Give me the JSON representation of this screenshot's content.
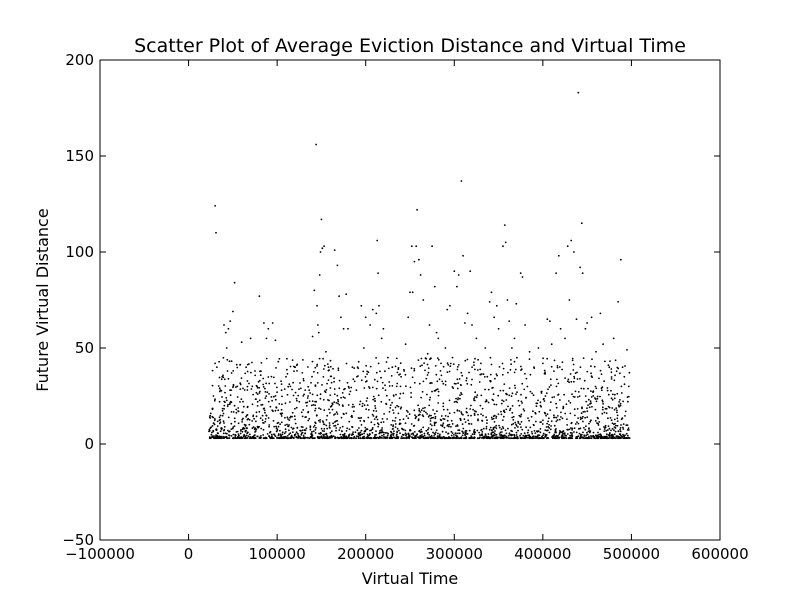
{
  "chart_data": {
    "type": "scatter",
    "title": "Scatter Plot of Average Eviction Distance and Virtual Time",
    "xlabel": "Virtual Time",
    "ylabel": "Future Virtual Distance",
    "xlim": [
      -100000,
      600000
    ],
    "ylim": [
      -50,
      200
    ],
    "x_ticks": [
      -100000,
      0,
      100000,
      200000,
      300000,
      400000,
      500000,
      600000
    ],
    "x_tick_labels": [
      "−100000",
      "0",
      "100000",
      "200000",
      "300000",
      "400000",
      "500000",
      "600000"
    ],
    "y_ticks": [
      -50,
      0,
      50,
      100,
      150,
      200
    ],
    "y_tick_labels": [
      "−50",
      "0",
      "50",
      "100",
      "150",
      "200"
    ],
    "grid": false,
    "legend": "none",
    "marker_color": "#000000",
    "series": [
      {
        "points": [
          [
            30000,
            124
          ],
          [
            31000,
            110
          ],
          [
            30000,
            42
          ],
          [
            32000,
            40
          ],
          [
            35000,
            22
          ],
          [
            28000,
            25
          ],
          [
            27000,
            18
          ],
          [
            40000,
            62
          ],
          [
            42000,
            58
          ],
          [
            45000,
            60
          ],
          [
            43000,
            50
          ],
          [
            47000,
            64
          ],
          [
            50000,
            69
          ],
          [
            52000,
            84
          ],
          [
            44000,
            38
          ],
          [
            55000,
            30
          ],
          [
            48000,
            28
          ],
          [
            38000,
            35
          ],
          [
            60000,
            53
          ],
          [
            65000,
            40
          ],
          [
            70000,
            55
          ],
          [
            72000,
            30
          ],
          [
            75000,
            38
          ],
          [
            78000,
            22
          ],
          [
            80000,
            77
          ],
          [
            85000,
            63
          ],
          [
            88000,
            55
          ],
          [
            90000,
            60
          ],
          [
            95000,
            63
          ],
          [
            98000,
            54
          ],
          [
            100000,
            27
          ],
          [
            105000,
            28
          ],
          [
            110000,
            35
          ],
          [
            115000,
            30
          ],
          [
            120000,
            40
          ],
          [
            125000,
            22
          ],
          [
            130000,
            33
          ],
          [
            135000,
            25
          ],
          [
            140000,
            56
          ],
          [
            142000,
            80
          ],
          [
            144000,
            156
          ],
          [
            145000,
            72
          ],
          [
            146000,
            62
          ],
          [
            147000,
            58
          ],
          [
            148000,
            88
          ],
          [
            149000,
            100
          ],
          [
            150000,
            117
          ],
          [
            151000,
            102
          ],
          [
            153000,
            103
          ],
          [
            155000,
            48
          ],
          [
            158000,
            40
          ],
          [
            165000,
            101
          ],
          [
            168000,
            93
          ],
          [
            170000,
            77
          ],
          [
            172000,
            66
          ],
          [
            175000,
            60
          ],
          [
            178000,
            78
          ],
          [
            180000,
            60
          ],
          [
            185000,
            40
          ],
          [
            190000,
            35
          ],
          [
            195000,
            72
          ],
          [
            198000,
            50
          ],
          [
            200000,
            66
          ],
          [
            205000,
            62
          ],
          [
            208000,
            70
          ],
          [
            212000,
            68
          ],
          [
            213000,
            106
          ],
          [
            214000,
            89
          ],
          [
            215000,
            72
          ],
          [
            218000,
            55
          ],
          [
            220000,
            60
          ],
          [
            225000,
            45
          ],
          [
            230000,
            40
          ],
          [
            235000,
            30
          ],
          [
            240000,
            35
          ],
          [
            245000,
            52
          ],
          [
            248000,
            66
          ],
          [
            250000,
            79
          ],
          [
            252000,
            103
          ],
          [
            253000,
            79
          ],
          [
            255000,
            95
          ],
          [
            257000,
            103
          ],
          [
            258000,
            122
          ],
          [
            260000,
            96
          ],
          [
            262000,
            88
          ],
          [
            265000,
            75
          ],
          [
            270000,
            47
          ],
          [
            272000,
            62
          ],
          [
            275000,
            103
          ],
          [
            278000,
            82
          ],
          [
            280000,
            58
          ],
          [
            282000,
            55
          ],
          [
            285000,
            42
          ],
          [
            290000,
            50
          ],
          [
            292000,
            70
          ],
          [
            295000,
            72
          ],
          [
            298000,
            45
          ],
          [
            300000,
            90
          ],
          [
            303000,
            82
          ],
          [
            305000,
            88
          ],
          [
            308000,
            137
          ],
          [
            310000,
            98
          ],
          [
            312000,
            63
          ],
          [
            315000,
            68
          ],
          [
            318000,
            90
          ],
          [
            320000,
            62
          ],
          [
            325000,
            55
          ],
          [
            330000,
            42
          ],
          [
            335000,
            50
          ],
          [
            340000,
            74
          ],
          [
            342000,
            79
          ],
          [
            345000,
            66
          ],
          [
            348000,
            72
          ],
          [
            350000,
            60
          ],
          [
            355000,
            103
          ],
          [
            357000,
            114
          ],
          [
            358000,
            105
          ],
          [
            360000,
            75
          ],
          [
            362000,
            64
          ],
          [
            365000,
            50
          ],
          [
            368000,
            55
          ],
          [
            370000,
            73
          ],
          [
            375000,
            89
          ],
          [
            377000,
            87
          ],
          [
            380000,
            62
          ],
          [
            385000,
            48
          ],
          [
            390000,
            40
          ],
          [
            395000,
            50
          ],
          [
            400000,
            42
          ],
          [
            405000,
            65
          ],
          [
            408000,
            64
          ],
          [
            410000,
            52
          ],
          [
            415000,
            89
          ],
          [
            418000,
            98
          ],
          [
            420000,
            60
          ],
          [
            425000,
            55
          ],
          [
            428000,
            103
          ],
          [
            430000,
            75
          ],
          [
            432000,
            106
          ],
          [
            435000,
            100
          ],
          [
            438000,
            65
          ],
          [
            440000,
            183
          ],
          [
            442000,
            92
          ],
          [
            444000,
            115
          ],
          [
            445000,
            89
          ],
          [
            448000,
            60
          ],
          [
            450000,
            63
          ],
          [
            455000,
            66
          ],
          [
            460000,
            48
          ],
          [
            465000,
            68
          ],
          [
            468000,
            52
          ],
          [
            470000,
            43
          ],
          [
            475000,
            40
          ],
          [
            480000,
            55
          ],
          [
            485000,
            74
          ],
          [
            488000,
            96
          ],
          [
            490000,
            40
          ],
          [
            492000,
            35
          ],
          [
            495000,
            49
          ],
          [
            497000,
            30
          ]
        ]
      }
    ]
  }
}
